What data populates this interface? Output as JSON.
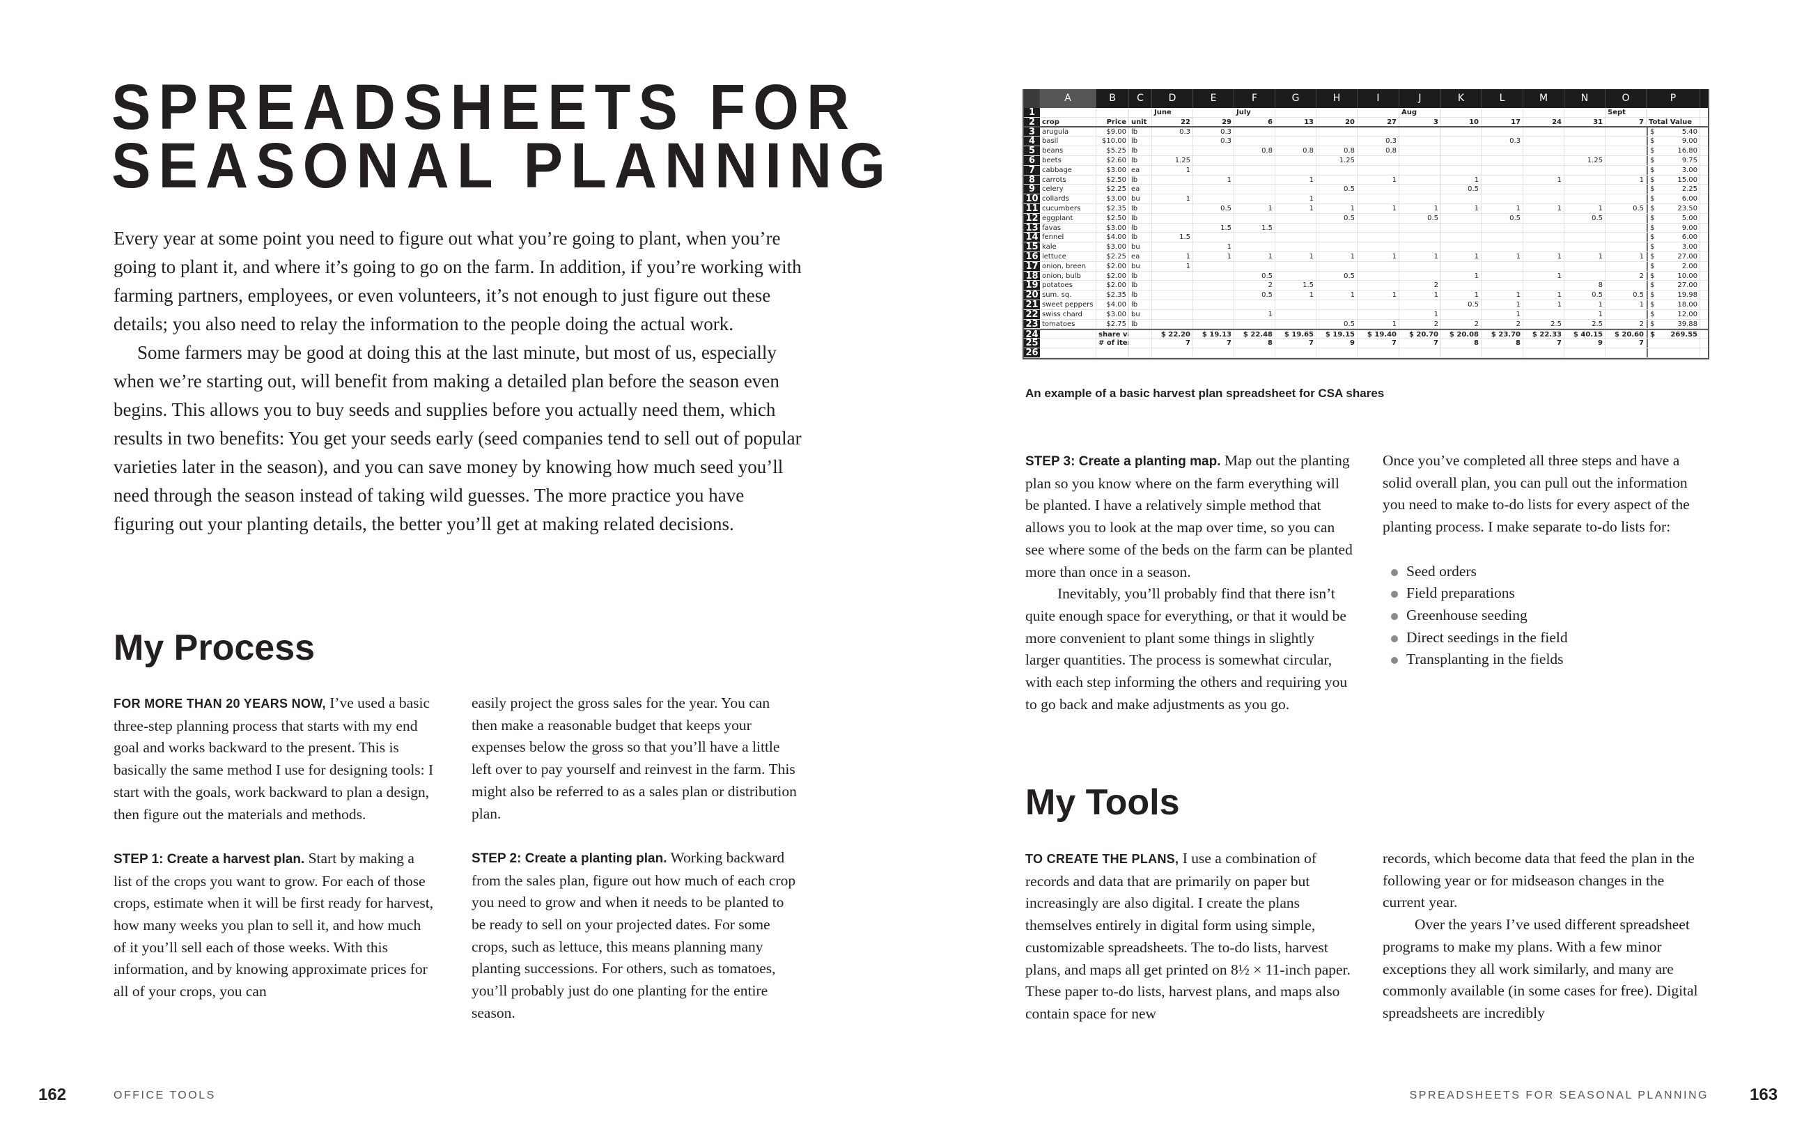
{
  "left_page": {
    "title_line1": "SPREADSHEETS FOR",
    "title_line2": "SEASONAL PLANNING",
    "intro_p1": "Every year at some point you need to figure out what you’re going to plant, when you’re going to plant it, and where it’s going to go on the farm. In addition, if you’re working with farming partners, employees, or even volunteers, it’s not enough to just figure out these details; you also need to relay the information to the people doing the actual work.",
    "intro_p2": "Some farmers may be good at doing this at the last minute, but most of us, especially when we’re starting out, will benefit from making a detailed plan before the season even begins. This allows you to buy seeds and supplies before you actually need them, which results in two benefits: You get your seeds early (seed companies tend to sell out of popular varieties later in the season), and you can save money by knowing how much seed you’ll need through the season instead of taking wild guesses. The more practice you have figuring out your planting details, the better you’ll get at making related decisions.",
    "section_heading": "My Process",
    "process_lead": "FOR MORE THAN 20 YEARS NOW,",
    "process_p1": " I’ve used a basic three-step planning process that starts with my end goal and works backward to the present. This is basically the same method I use for designing tools: I start with the goals, work backward to plan a design, then figure out the materials and methods.",
    "step1_label": "STEP 1: Create a harvest plan.",
    "step1_text": " Start by making a list of the crops you want to grow. For each of those crops, estimate when it will be first ready for harvest, how many weeks you plan to sell it, and how much of it you’ll sell each of those weeks. With this information, and by knowing approximate prices for all of your crops, you can",
    "col2_p1": "easily project the gross sales for the year. You can then make a reasonable budget that keeps your expenses below the gross so that you’ll have a little left over to pay yourself and reinvest in the farm. This might also be referred to as a sales plan or distribution plan.",
    "step2_label": "STEP 2: Create a planting plan.",
    "step2_text": " Working backward from the sales plan, figure out how much of each crop you need to grow and when it needs to be planted to be ready to sell on your projected dates. For some crops, such as lettuce, this means planning many planting successions. For others, such as tomatoes, you’ll probably just do one planting for the entire season.",
    "page_number": "162",
    "running_head": "OFFICE TOOLS"
  },
  "right_page": {
    "caption": "An example of a basic harvest plan spreadsheet for CSA shares",
    "step3_label": "STEP 3: Create a planting map.",
    "step3_text": " Map out the planting plan so you know where on the farm everything will be planted. I have a relatively simple method that allows you to look at the map over time, so you can see where some of the beds on the farm can be planted more than once in a season.",
    "step3_p2": "Inevitably, you’ll probably find that there isn’t quite enough space for everything, or that it would be more convenient to plant some things in slightly larger quantities. The process is somewhat circular, with each step informing the others and requiring you to go back and make adjustments as you go.",
    "todo_intro": "Once you’ve completed all three steps and have a solid overall plan, you can pull out the information you need to make to-do lists for every aspect of the planting process. I make separate to-do lists for:",
    "todo_items": [
      "Seed orders",
      "Field preparations",
      "Greenhouse seeding",
      "Direct seedings in the field",
      "Transplanting in the fields"
    ],
    "section_heading": "My Tools",
    "tools_lead": "TO CREATE THE PLANS,",
    "tools_p1": " I use a combination of records and data that are primarily on paper but increasingly are also digital. I create the plans themselves entirely in digital form using simple, customizable spreadsheets. The to-do lists, harvest plans, and maps all get printed on 8½ × 11-inch paper. These paper to-do lists, harvest plans, and maps also contain space for new",
    "tools_col2_p1": "records, which become data that feed the plan in the following year or for midseason changes in the current year.",
    "tools_col2_p2": "Over the years I’ve used different spreadsheet programs to make my plans. With a few minor exceptions they all work similarly, and many are commonly available (in some cases for free). Digital spreadsheets are incredibly",
    "running_head": "SPREADSHEETS FOR SEASONAL PLANNING",
    "page_number": "163"
  },
  "spreadsheet": {
    "column_letters": [
      "A",
      "B",
      "C",
      "D",
      "E",
      "F",
      "G",
      "H",
      "I",
      "J",
      "K",
      "L",
      "M",
      "N",
      "O",
      "P"
    ],
    "row1": [
      "",
      "",
      "",
      "June",
      "",
      "July",
      "",
      "",
      "",
      "Aug",
      "",
      "",
      "",
      "",
      "Sept",
      ""
    ],
    "row2": [
      "crop",
      "Price",
      "unit",
      "22",
      "29",
      "6",
      "13",
      "20",
      "27",
      "3",
      "10",
      "17",
      "24",
      "31",
      "7",
      "Total Value"
    ],
    "currency_symbol": "$",
    "crops": [
      [
        "arugula",
        "$9.00",
        "lb",
        "0.3",
        "0.3",
        "",
        "",
        "",
        "",
        "",
        "",
        "",
        "",
        "",
        "",
        "5.40"
      ],
      [
        "basil",
        "$10.00",
        "lb",
        "",
        "0.3",
        "",
        "",
        "",
        "0.3",
        "",
        "",
        "0.3",
        "",
        "",
        "",
        "9.00"
      ],
      [
        "beans",
        "$5.25",
        "lb",
        "",
        "",
        "0.8",
        "0.8",
        "0.8",
        "0.8",
        "",
        "",
        "",
        "",
        "",
        "",
        "16.80"
      ],
      [
        "beets",
        "$2.60",
        "lb",
        "1.25",
        "",
        "",
        "",
        "1.25",
        "",
        "",
        "",
        "",
        "",
        "1.25",
        "",
        "9.75"
      ],
      [
        "cabbage",
        "$3.00",
        "ea",
        "1",
        "",
        "",
        "",
        "",
        "",
        "",
        "",
        "",
        "",
        "",
        "",
        "3.00"
      ],
      [
        "carrots",
        "$2.50",
        "lb",
        "",
        "1",
        "",
        "1",
        "",
        "1",
        "",
        "1",
        "",
        "1",
        "",
        "1",
        "15.00"
      ],
      [
        "celery",
        "$2.25",
        "ea",
        "",
        "",
        "",
        "",
        "0.5",
        "",
        "",
        "0.5",
        "",
        "",
        "",
        "",
        "2.25"
      ],
      [
        "collards",
        "$3.00",
        "bu",
        "1",
        "",
        "",
        "1",
        "",
        "",
        "",
        "",
        "",
        "",
        "",
        "",
        "6.00"
      ],
      [
        "cucumbers",
        "$2.35",
        "lb",
        "",
        "0.5",
        "1",
        "1",
        "1",
        "1",
        "1",
        "1",
        "1",
        "1",
        "1",
        "0.5",
        "23.50"
      ],
      [
        "eggplant",
        "$2.50",
        "lb",
        "",
        "",
        "",
        "",
        "0.5",
        "",
        "0.5",
        "",
        "0.5",
        "",
        "0.5",
        "",
        "5.00"
      ],
      [
        "favas",
        "$3.00",
        "lb",
        "",
        "1.5",
        "1.5",
        "",
        "",
        "",
        "",
        "",
        "",
        "",
        "",
        "",
        "9.00"
      ],
      [
        "fennel",
        "$4.00",
        "lb",
        "1.5",
        "",
        "",
        "",
        "",
        "",
        "",
        "",
        "",
        "",
        "",
        "",
        "6.00"
      ],
      [
        "kale",
        "$3.00",
        "bu",
        "",
        "1",
        "",
        "",
        "",
        "",
        "",
        "",
        "",
        "",
        "",
        "",
        "3.00"
      ],
      [
        "lettuce",
        "$2.25",
        "ea",
        "1",
        "1",
        "1",
        "1",
        "1",
        "1",
        "1",
        "1",
        "1",
        "1",
        "1",
        "1",
        "27.00"
      ],
      [
        "onion, breen",
        "$2.00",
        "bu",
        "1",
        "",
        "",
        "",
        "",
        "",
        "",
        "",
        "",
        "",
        "",
        "",
        "2.00"
      ],
      [
        "onion, bulb",
        "$2.00",
        "lb",
        "",
        "",
        "0.5",
        "",
        "0.5",
        "",
        "",
        "1",
        "",
        "1",
        "",
        "2",
        "10.00"
      ],
      [
        "potatoes",
        "$2.00",
        "lb",
        "",
        "",
        "2",
        "1.5",
        "",
        "",
        "2",
        "",
        "",
        "",
        "8",
        "",
        "27.00"
      ],
      [
        "sum. sq.",
        "$2.35",
        "lb",
        "",
        "",
        "0.5",
        "1",
        "1",
        "1",
        "1",
        "1",
        "1",
        "1",
        "0.5",
        "0.5",
        "19.98"
      ],
      [
        "sweet peppers",
        "$4.00",
        "lb",
        "",
        "",
        "",
        "",
        "",
        "",
        "",
        "0.5",
        "1",
        "1",
        "1",
        "1",
        "18.00"
      ],
      [
        "swiss chard",
        "$3.00",
        "bu",
        "",
        "",
        "1",
        "",
        "",
        "",
        "1",
        "",
        "1",
        "",
        "1",
        "",
        "12.00"
      ],
      [
        "tomatoes",
        "$2.75",
        "lb",
        "",
        "",
        "",
        "",
        "0.5",
        "1",
        "2",
        "2",
        "2",
        "2.5",
        "2.5",
        "2",
        "39.88"
      ]
    ],
    "share_value_label": "share value",
    "share_values": [
      "$ 22.20",
      "$ 19.13",
      "$ 22.48",
      "$ 19.65",
      "$ 19.15",
      "$ 19.40",
      "$ 20.70",
      "$ 20.08",
      "$ 23.70",
      "$ 22.33",
      "$ 40.15",
      "$ 20.60"
    ],
    "share_total": "269.55",
    "items_label": "# of items",
    "item_counts": [
      "7",
      "7",
      "8",
      "7",
      "9",
      "7",
      "7",
      "8",
      "8",
      "7",
      "9",
      "7"
    ]
  }
}
